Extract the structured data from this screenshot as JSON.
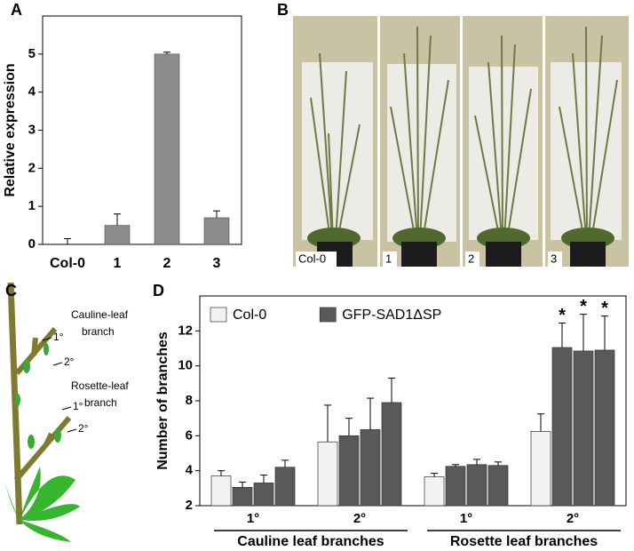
{
  "panels": [
    "A",
    "B",
    "C",
    "D"
  ],
  "chart_data": [
    {
      "type": "bar",
      "y_label": "Relative expression",
      "categories": [
        "Col-0",
        "1",
        "2",
        "3"
      ],
      "values": [
        0,
        0.5,
        5,
        0.7
      ],
      "errors": [
        0.15,
        0.3,
        0.05,
        0.18
      ],
      "color": "#8c8c8c",
      "ylim": [
        0,
        6
      ],
      "yticks": [
        0,
        1,
        2,
        3,
        4,
        5
      ]
    },
    {
      "type": "grouped_bar",
      "y_label": "Number of branches",
      "categories": [
        "1°",
        "2°",
        "1°",
        "2°"
      ],
      "groups": [
        "Cauline leaf branches",
        "Rosette leaf branches"
      ],
      "series": [
        {
          "name": "Col-0",
          "color": "#f2f2f2",
          "values": [
            3.7,
            5.65,
            3.65,
            6.25
          ],
          "errors": [
            0.3,
            2.1,
            0.2,
            1.0
          ]
        },
        {
          "name": "GFP-SAD1ΔSP",
          "color": "#595959",
          "values": [
            [
              3.05,
              3.3,
              4.2
            ],
            [
              6.0,
              6.35,
              7.9
            ],
            [
              4.25,
              4.35,
              4.3
            ],
            [
              11.05,
              10.85,
              10.9
            ]
          ],
          "errors": [
            [
              0.3,
              0.45,
              0.4
            ],
            [
              1.0,
              1.8,
              1.4
            ],
            [
              0.1,
              0.3,
              0.2
            ],
            [
              1.4,
              2.1,
              1.95
            ]
          ],
          "markers": [
            [
              null,
              null,
              null
            ],
            [
              null,
              null,
              null
            ],
            [
              null,
              null,
              null
            ],
            [
              "*",
              "*",
              "*"
            ]
          ]
        }
      ],
      "ylim": [
        2,
        14
      ],
      "yticks": [
        2,
        4,
        6,
        8,
        10,
        12
      ],
      "legend": "top-left"
    }
  ],
  "photos": {
    "labels": [
      "Col-0",
      "1",
      "2",
      "3"
    ]
  },
  "diagram": {
    "cauline_label": [
      "Cauline-leaf",
      "branch"
    ],
    "rosette_label": [
      "Rosette-leaf",
      "branch"
    ],
    "orders": [
      "1°",
      "2°",
      "1°",
      "2°"
    ]
  }
}
